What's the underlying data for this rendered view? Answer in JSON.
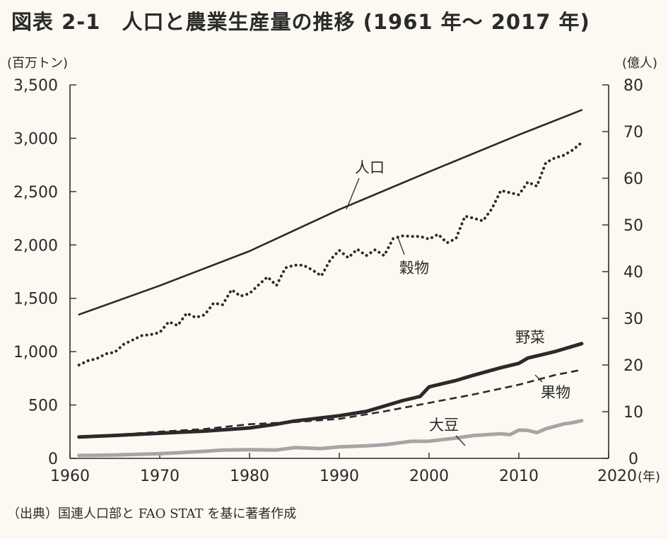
{
  "title": "図表 2-1　人口と農業生産量の推移 (1961 年～ 2017 年)",
  "source": "（出典）国連人口部と FAO STAT を基に著者作成",
  "chart_data": {
    "type": "line",
    "x_unit_label": "(年)",
    "y_left_unit_label": "(百万トン)",
    "y_right_unit_label": "(億人)",
    "xlim": [
      1960,
      2020
    ],
    "ylim_left": [
      0,
      3500
    ],
    "ylim_right": [
      0,
      80
    ],
    "x_ticks": [
      1960,
      1970,
      1980,
      1990,
      2000,
      2010,
      2020
    ],
    "y_left_ticks": [
      0,
      500,
      1000,
      1500,
      2000,
      2500,
      3000,
      3500
    ],
    "y_right_ticks": [
      0,
      10,
      20,
      30,
      40,
      50,
      60,
      70,
      80
    ],
    "y_left_tick_labels": [
      "0",
      "500",
      "1,000",
      "1,500",
      "2,000",
      "2,500",
      "3,000",
      "3,500"
    ],
    "y_right_tick_labels": [
      "0",
      "10",
      "20",
      "30",
      "40",
      "50",
      "60",
      "70",
      "80"
    ],
    "grid": false,
    "series": [
      {
        "name": "人口",
        "axis": "right",
        "style": "solid",
        "color": "#2a2a2a",
        "points": [
          [
            1961,
            30.8
          ],
          [
            1970,
            37.0
          ],
          [
            1980,
            44.4
          ],
          [
            1990,
            53.3
          ],
          [
            2000,
            61.4
          ],
          [
            2010,
            69.3
          ],
          [
            2017,
            74.6
          ]
        ]
      },
      {
        "name": "穀物",
        "axis": "left",
        "style": "dotted",
        "color": "#2a2a2a",
        "points": [
          [
            1961,
            875
          ],
          [
            1962,
            915
          ],
          [
            1963,
            935
          ],
          [
            1964,
            980
          ],
          [
            1965,
            995
          ],
          [
            1966,
            1070
          ],
          [
            1967,
            1110
          ],
          [
            1968,
            1150
          ],
          [
            1969,
            1160
          ],
          [
            1970,
            1180
          ],
          [
            1971,
            1280
          ],
          [
            1972,
            1245
          ],
          [
            1973,
            1360
          ],
          [
            1974,
            1320
          ],
          [
            1975,
            1345
          ],
          [
            1976,
            1455
          ],
          [
            1977,
            1440
          ],
          [
            1978,
            1580
          ],
          [
            1979,
            1520
          ],
          [
            1980,
            1545
          ],
          [
            1981,
            1625
          ],
          [
            1982,
            1700
          ],
          [
            1983,
            1620
          ],
          [
            1984,
            1785
          ],
          [
            1985,
            1810
          ],
          [
            1986,
            1810
          ],
          [
            1987,
            1765
          ],
          [
            1988,
            1710
          ],
          [
            1989,
            1860
          ],
          [
            1990,
            1950
          ],
          [
            1991,
            1880
          ],
          [
            1992,
            1960
          ],
          [
            1993,
            1900
          ],
          [
            1994,
            1955
          ],
          [
            1995,
            1900
          ],
          [
            1996,
            2060
          ],
          [
            1997,
            2085
          ],
          [
            1998,
            2080
          ],
          [
            1999,
            2080
          ],
          [
            2000,
            2055
          ],
          [
            2001,
            2100
          ],
          [
            2002,
            2020
          ],
          [
            2003,
            2060
          ],
          [
            2004,
            2270
          ],
          [
            2005,
            2250
          ],
          [
            2006,
            2225
          ],
          [
            2007,
            2340
          ],
          [
            2008,
            2510
          ],
          [
            2009,
            2490
          ],
          [
            2010,
            2470
          ],
          [
            2011,
            2590
          ],
          [
            2012,
            2550
          ],
          [
            2013,
            2770
          ],
          [
            2014,
            2815
          ],
          [
            2015,
            2840
          ],
          [
            2016,
            2890
          ],
          [
            2017,
            2960
          ]
        ]
      },
      {
        "name": "野菜",
        "axis": "left",
        "style": "solid-thick",
        "color": "#2a2a2a",
        "points": [
          [
            1961,
            200
          ],
          [
            1965,
            215
          ],
          [
            1970,
            235
          ],
          [
            1975,
            255
          ],
          [
            1980,
            285
          ],
          [
            1983,
            320
          ],
          [
            1985,
            350
          ],
          [
            1990,
            400
          ],
          [
            1993,
            440
          ],
          [
            1995,
            490
          ],
          [
            1997,
            540
          ],
          [
            1999,
            580
          ],
          [
            2000,
            670
          ],
          [
            2003,
            730
          ],
          [
            2005,
            780
          ],
          [
            2008,
            850
          ],
          [
            2010,
            890
          ],
          [
            2011,
            940
          ],
          [
            2014,
            1000
          ],
          [
            2017,
            1075
          ]
        ]
      },
      {
        "name": "果物",
        "axis": "left",
        "style": "dashed",
        "color": "#2a2a2a",
        "points": [
          [
            1961,
            200
          ],
          [
            1965,
            220
          ],
          [
            1970,
            250
          ],
          [
            1975,
            275
          ],
          [
            1980,
            320
          ],
          [
            1985,
            340
          ],
          [
            1990,
            370
          ],
          [
            1995,
            440
          ],
          [
            2000,
            520
          ],
          [
            2005,
            600
          ],
          [
            2010,
            690
          ],
          [
            2014,
            780
          ],
          [
            2017,
            830
          ]
        ]
      },
      {
        "name": "大豆",
        "axis": "left",
        "style": "grey-thick",
        "color": "#a5a5a5",
        "points": [
          [
            1961,
            27
          ],
          [
            1965,
            31
          ],
          [
            1970,
            44
          ],
          [
            1975,
            66
          ],
          [
            1977,
            78
          ],
          [
            1980,
            81
          ],
          [
            1983,
            78
          ],
          [
            1985,
            101
          ],
          [
            1988,
            92
          ],
          [
            1990,
            108
          ],
          [
            1993,
            117
          ],
          [
            1995,
            127
          ],
          [
            1998,
            160
          ],
          [
            2000,
            161
          ],
          [
            2003,
            190
          ],
          [
            2005,
            215
          ],
          [
            2008,
            230
          ],
          [
            2009,
            222
          ],
          [
            2010,
            265
          ],
          [
            2011,
            262
          ],
          [
            2012,
            241
          ],
          [
            2013,
            277
          ],
          [
            2015,
            323
          ],
          [
            2016,
            335
          ],
          [
            2017,
            353
          ]
        ]
      }
    ],
    "labels": [
      {
        "text": "人口"
      },
      {
        "text": "穀物"
      },
      {
        "text": "野菜"
      },
      {
        "text": "果物"
      },
      {
        "text": "大豆"
      }
    ]
  }
}
